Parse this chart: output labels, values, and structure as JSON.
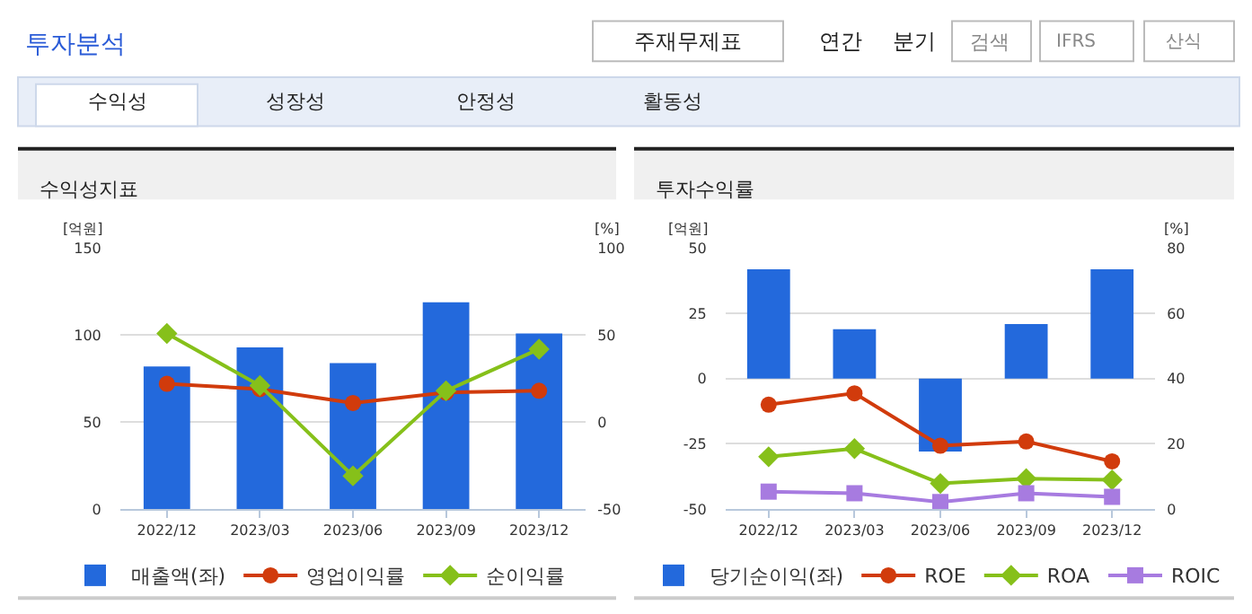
{
  "chart_data": [
    {
      "type": "other",
      "annotations": [
        "투자분석",
        "주재무제표",
        "연간",
        "분기",
        "검색",
        "IFRS",
        "산식",
        "수익성",
        "성장성",
        "안정성",
        "활동성"
      ]
    },
    {
      "type": "bar",
      "title": "수익성지표",
      "ylabel": "[억원]",
      "y2label": "[%]",
      "categories": [
        "2022/12",
        "2023/03",
        "2023/06",
        "2023/09",
        "2023/12"
      ],
      "ylim": [
        0,
        150
      ],
      "yticks": [
        0,
        50,
        100,
        150
      ],
      "y2lim": [
        -50,
        100
      ],
      "y2ticks": [
        -50,
        0,
        50,
        100
      ],
      "grid": "y",
      "legend": "bottom",
      "series": [
        {
          "name": "매출액(좌)",
          "type": "bar",
          "color": "#2369dc",
          "values": [
            82,
            93,
            84,
            119,
            101
          ]
        },
        {
          "name": "영업이익률",
          "type": "line",
          "axis": "y2",
          "marker": "circle",
          "color": "#d13b0c",
          "values": [
            22,
            19,
            11,
            17,
            18
          ]
        },
        {
          "name": "순이익률",
          "type": "line",
          "axis": "y2",
          "marker": "diamond",
          "color": "#86c01a",
          "values": [
            51,
            21,
            -31,
            18,
            42
          ]
        }
      ]
    },
    {
      "type": "bar",
      "title": "투자수익률",
      "ylabel": "[억원]",
      "y2label": "[%]",
      "categories": [
        "2022/12",
        "2023/03",
        "2023/06",
        "2023/09",
        "2023/12"
      ],
      "ylim": [
        -50,
        50
      ],
      "yticks": [
        -50,
        -25,
        0,
        25,
        50
      ],
      "y2lim": [
        0,
        80
      ],
      "y2ticks": [
        0,
        20,
        40,
        60,
        80
      ],
      "grid": "y",
      "legend": "bottom",
      "series": [
        {
          "name": "당기순이익(좌)",
          "type": "bar",
          "color": "#2369dc",
          "values": [
            42,
            19,
            -28,
            21,
            42
          ]
        },
        {
          "name": "ROE",
          "type": "line",
          "axis": "y2",
          "marker": "circle",
          "color": "#d13b0c",
          "values": [
            32,
            35.5,
            19.4,
            20.7,
            14.6
          ]
        },
        {
          "name": "ROA",
          "type": "line",
          "axis": "y2",
          "marker": "diamond",
          "color": "#86c01a",
          "values": [
            16,
            18.5,
            7.8,
            9.3,
            8.9
          ]
        },
        {
          "name": "ROIC",
          "type": "line",
          "axis": "y2",
          "marker": "square",
          "color": "#a77be0",
          "values": [
            5.3,
            4.8,
            2.1,
            4.8,
            3.7
          ]
        }
      ]
    }
  ]
}
